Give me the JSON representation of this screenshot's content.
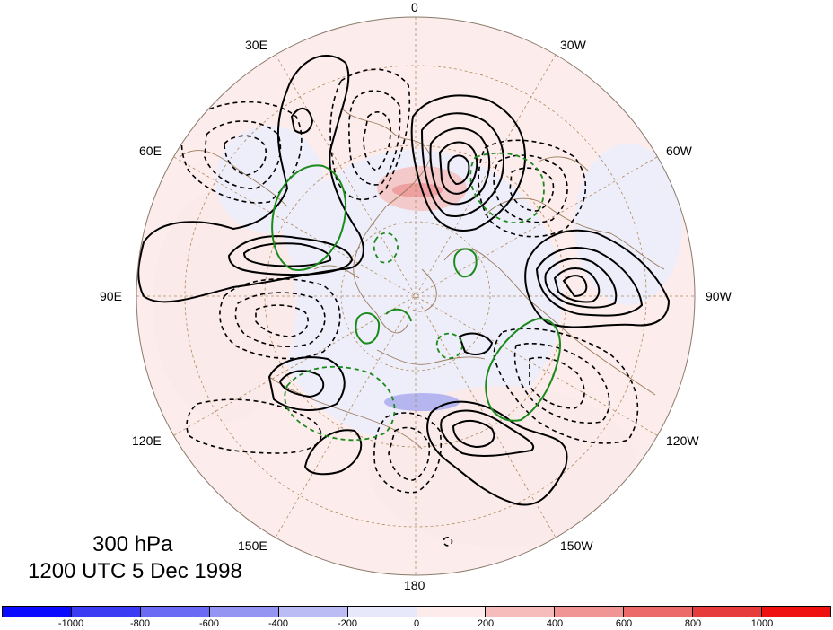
{
  "map": {
    "projection": "north-polar-stereographic",
    "longitude_labels": [
      "0",
      "30W",
      "60W",
      "90W",
      "120W",
      "150W",
      "180",
      "150E",
      "120E",
      "90E",
      "60E",
      "30E"
    ],
    "background_shading": "light-red-blue anomaly",
    "contour_colors": {
      "positive": "#000000",
      "negative": "#000000",
      "green": "#1a8a1a"
    }
  },
  "title": {
    "level": "300 hPa",
    "time": "1200 UTC 5 Dec 1998"
  },
  "colorbar": {
    "colors": [
      "#0a0aff",
      "#3b3bf4",
      "#6a6af4",
      "#9494f2",
      "#bcbcf4",
      "#e8e8fb",
      "#fdeaea",
      "#f6bcbc",
      "#f19494",
      "#ec6a6a",
      "#e63c3c",
      "#ef1010"
    ],
    "tick_labels": [
      "-1000",
      "-800",
      "-600",
      "-400",
      "-200",
      "0",
      "200",
      "400",
      "600",
      "800",
      "1000"
    ]
  }
}
